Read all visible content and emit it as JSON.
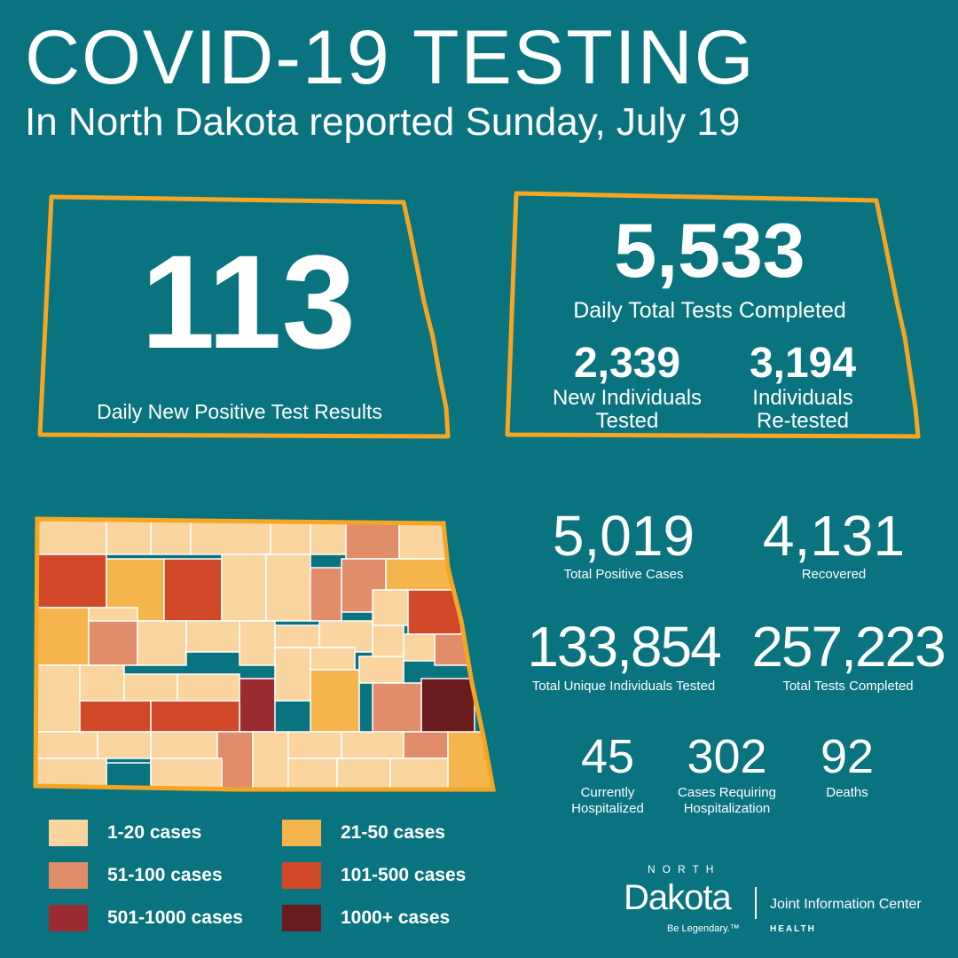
{
  "header": {
    "title": "COVID-19 TESTING",
    "subtitle": "In North Dakota reported Sunday, July 19"
  },
  "daily_positive": {
    "value": "113",
    "label": "Daily New Positive Test Results"
  },
  "daily_tests": {
    "value": "5,533",
    "label": "Daily Total Tests Completed",
    "new_individuals": {
      "value": "2,339",
      "label_1": "New Individuals",
      "label_2": "Tested"
    },
    "retested": {
      "value": "3,194",
      "label_1": "Individuals",
      "label_2": "Re-tested"
    }
  },
  "stats": {
    "total_positive": {
      "value": "5,019",
      "label": "Total Positive Cases"
    },
    "recovered": {
      "value": "4,131",
      "label": "Recovered"
    },
    "unique_tested": {
      "value": "133,854",
      "label": "Total Unique Individuals Tested"
    },
    "total_tests": {
      "value": "257,223",
      "label": "Total Tests Completed"
    },
    "hospitalized": {
      "value": "45",
      "label_1": "Currently",
      "label_2": "Hospitalized"
    },
    "requiring_hosp": {
      "value": "302",
      "label_1": "Cases Requiring",
      "label_2": "Hospitalization"
    },
    "deaths": {
      "value": "92",
      "label": "Deaths"
    }
  },
  "legend": [
    {
      "label": "1-20 cases",
      "color": "#fad5a0"
    },
    {
      "label": "21-50 cases",
      "color": "#f6b44c"
    },
    {
      "label": "51-100 cases",
      "color": "#e28d6a"
    },
    {
      "label": "101-500 cases",
      "color": "#d2492a"
    },
    {
      "label": "501-1000 cases",
      "color": "#9c2b31"
    },
    {
      "label": "1000+ cases",
      "color": "#6a1b1d"
    }
  ],
  "colors": {
    "outline": "#f5a623",
    "background": "#0a7380"
  },
  "footer": {
    "north": "NORTH",
    "dakota": "Dakota",
    "tagline": "Be Legendary.™",
    "center": "Joint Information Center",
    "dept": "HEALTH"
  }
}
